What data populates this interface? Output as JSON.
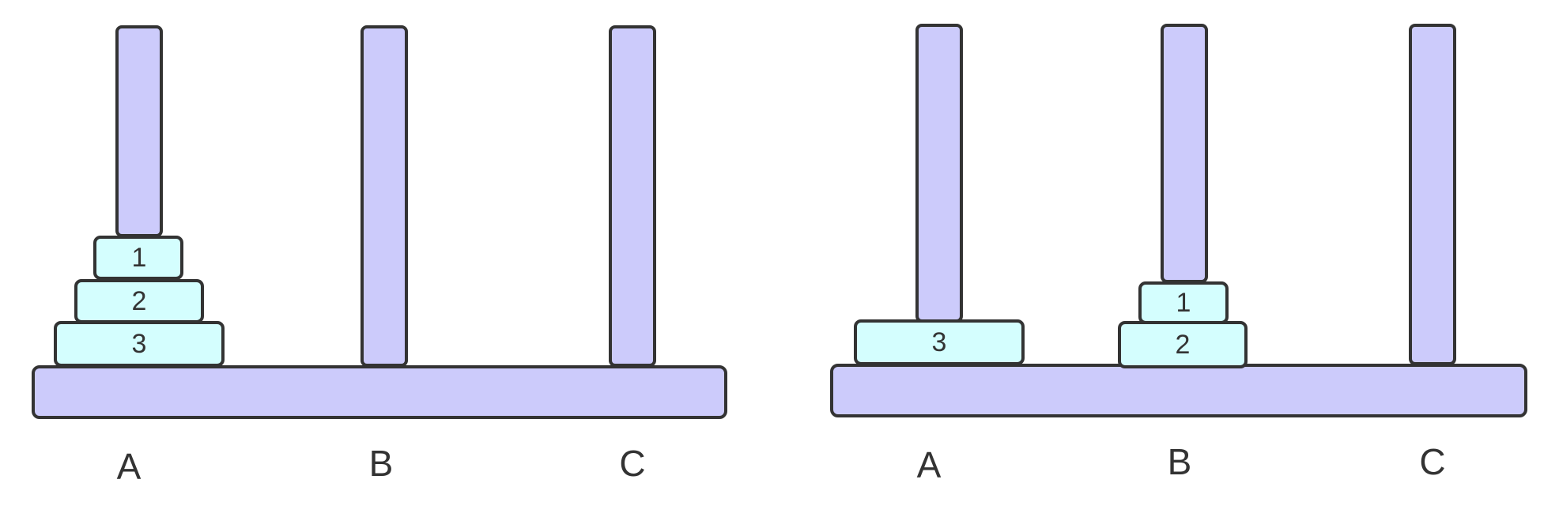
{
  "colors": {
    "peg_fill": "#cccbfb",
    "base_fill": "#cccbfb",
    "disk_fill": "#d4fefe",
    "outline": "#333333",
    "text": "#333333"
  },
  "states": [
    {
      "pegs": [
        {
          "label": "A",
          "disks": [
            "3",
            "2",
            "1"
          ]
        },
        {
          "label": "B",
          "disks": []
        },
        {
          "label": "C",
          "disks": []
        }
      ]
    },
    {
      "pegs": [
        {
          "label": "A",
          "disks": [
            "3"
          ]
        },
        {
          "label": "B",
          "disks": [
            "2",
            "1"
          ]
        },
        {
          "label": "C",
          "disks": []
        }
      ]
    }
  ]
}
